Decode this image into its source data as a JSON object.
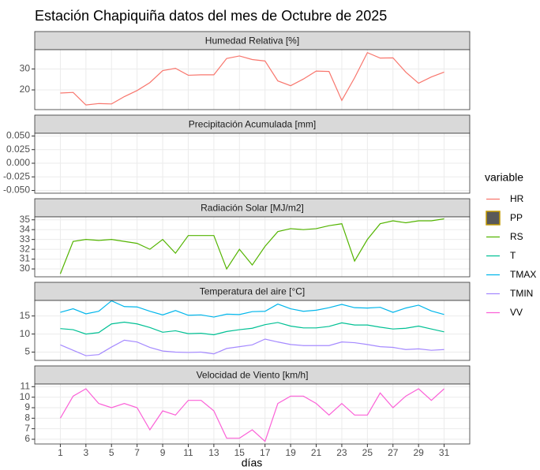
{
  "chart_data": {
    "type": "facet",
    "title": "Estación Chapiquiña datos del mes de Octubre de 2025",
    "xlabel": "días",
    "legend_title": "variable",
    "grid": true,
    "x": [
      1,
      2,
      3,
      4,
      5,
      6,
      7,
      8,
      9,
      10,
      11,
      12,
      13,
      14,
      15,
      16,
      17,
      18,
      19,
      20,
      21,
      22,
      23,
      24,
      25,
      26,
      27,
      28,
      29,
      30,
      31
    ],
    "xlim": [
      -1,
      33
    ],
    "xticks": [
      1,
      3,
      5,
      7,
      9,
      11,
      13,
      15,
      17,
      19,
      21,
      23,
      25,
      27,
      29,
      31
    ],
    "panels": [
      {
        "type": "line",
        "title": "Humedad Relativa [%]",
        "ylim": [
          10.6,
          39.2
        ],
        "yticks": [
          20,
          30
        ],
        "series": [
          {
            "name": "HR",
            "color": "#F8766D",
            "values": [
              18.5,
              18.8,
              12.8,
              13.5,
              13.3,
              16.8,
              19.7,
              23.5,
              29.2,
              30.3,
              27,
              27.2,
              27.2,
              35,
              36.2,
              34.5,
              33.8,
              24.3,
              22,
              25.2,
              29,
              28.8,
              15,
              25.8,
              37.8,
              35.2,
              35.3,
              28.5,
              23.2,
              26.2,
              28.5
            ]
          }
        ]
      },
      {
        "type": "bar",
        "title": "Precipitación Acumulada [mm]",
        "ylim": [
          -0.055,
          0.055
        ],
        "yticks": [
          {
            "value": 0.05,
            "label": "0.050"
          },
          {
            "value": 0.025,
            "label": "0.025"
          },
          {
            "value": 0,
            "label": "0.000"
          },
          {
            "value": -0.025,
            "label": "-0.025"
          },
          {
            "value": -0.05,
            "label": "-0.050"
          }
        ],
        "series": [
          {
            "name": "PP",
            "color": "#C49A00",
            "fill": "#595959",
            "values": [
              0,
              0,
              0,
              0,
              0,
              0,
              0,
              0,
              0,
              0,
              0,
              0,
              0,
              0,
              0,
              0,
              0,
              0,
              0,
              0,
              0,
              0,
              0,
              0,
              0,
              0,
              0,
              0,
              0,
              0,
              0
            ]
          }
        ]
      },
      {
        "type": "line",
        "title": "Radiación Solar [MJ/m2]",
        "ylim": [
          29.2,
          35.3
        ],
        "yticks": [
          30,
          31,
          32,
          33,
          34,
          35
        ],
        "series": [
          {
            "name": "RS",
            "color": "#53B400",
            "values": [
              29.5,
              32.8,
              33.0,
              32.9,
              33.0,
              32.8,
              32.6,
              32.0,
              33.0,
              31.6,
              33.4,
              33.4,
              33.4,
              30.0,
              32.0,
              30.4,
              32.3,
              33.8,
              34.1,
              34.0,
              34.1,
              34.4,
              34.6,
              30.8,
              33.0,
              34.6,
              34.9,
              34.7,
              34.9,
              34.9,
              35.1
            ]
          }
        ]
      },
      {
        "type": "line",
        "title": "Temperatura del aire [°C]",
        "ylim": [
          2.7,
          19.3
        ],
        "yticks": [
          5,
          10,
          15
        ],
        "series": [
          {
            "name": "T",
            "color": "#00C094",
            "values": [
              11.5,
              11.2,
              10.0,
              10.4,
              12.8,
              13.3,
              12.8,
              11.8,
              10.5,
              10.9,
              10.1,
              10.2,
              9.8,
              10.7,
              11.2,
              11.6,
              12.6,
              13.2,
              12.2,
              11.7,
              11.7,
              12.1,
              13.1,
              12.5,
              12.5,
              11.9,
              11.4,
              11.6,
              12.2,
              11.4,
              10.6
            ]
          },
          {
            "name": "TMAX",
            "color": "#00B6EB",
            "values": [
              16,
              17,
              15.6,
              16.3,
              19.2,
              17.6,
              17.5,
              16.3,
              15.3,
              16.5,
              15.2,
              15.3,
              14.7,
              15.5,
              15.4,
              16.2,
              16.3,
              18.3,
              17.0,
              16.3,
              16.6,
              17.3,
              18.2,
              17.3,
              17.2,
              17.4,
              16,
              17.2,
              18,
              16.4,
              15.4
            ]
          },
          {
            "name": "TMIN",
            "color": "#A58AFF",
            "values": [
              7,
              5.5,
              4,
              4.3,
              6.4,
              8.3,
              7.8,
              6.3,
              5.3,
              5,
              4.9,
              5,
              4.5,
              6,
              6.5,
              7,
              8.6,
              7.8,
              7.1,
              6.8,
              6.8,
              6.8,
              7.8,
              7.6,
              7.1,
              6.5,
              6.3,
              5.7,
              5.9,
              5.5,
              5.7
            ]
          }
        ]
      },
      {
        "type": "line",
        "title": "Velocidad de Viento [km/h]",
        "ylim": [
          5.55,
          11.25
        ],
        "yticks": [
          6,
          7,
          8,
          9,
          10,
          11
        ],
        "series": [
          {
            "name": "VV",
            "color": "#FB61D7",
            "values": [
              8,
              10.1,
              10.8,
              9.4,
              9,
              9.4,
              9,
              6.9,
              8.7,
              8.3,
              9.7,
              9.7,
              8.7,
              6.1,
              6.1,
              6.9,
              5.8,
              9.4,
              10.1,
              10.1,
              9.4,
              8.3,
              9.4,
              8.3,
              8.3,
              10.4,
              9,
              10.1,
              10.8,
              9.7,
              10.8
            ]
          }
        ]
      }
    ]
  }
}
